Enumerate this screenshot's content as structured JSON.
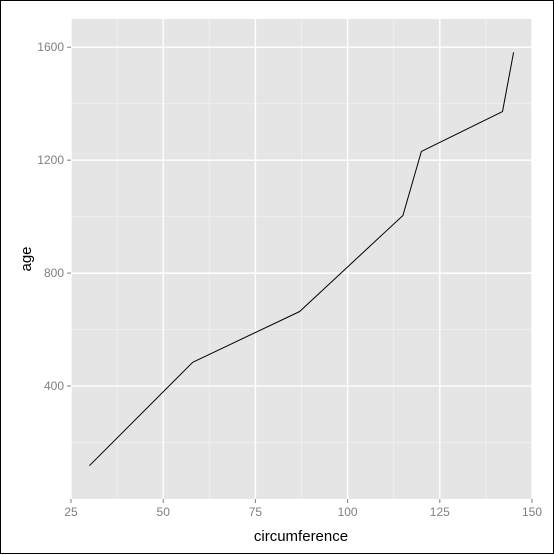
{
  "chart_data": {
    "type": "line",
    "xlabel": "circumference",
    "ylabel": "age",
    "xlim": [
      25,
      150
    ],
    "ylim": [
      0,
      1700
    ],
    "x_ticks": [
      25,
      50,
      75,
      100,
      125,
      150
    ],
    "y_ticks": [
      400,
      800,
      1200,
      1600
    ],
    "x_tick_labels": [
      "25",
      "50",
      "75",
      "100",
      "125",
      "150"
    ],
    "y_tick_labels": [
      "400",
      "800",
      "1200",
      "1600"
    ],
    "grid": true,
    "series": [
      {
        "x": [
          30,
          58,
          87,
          115,
          120,
          142,
          145
        ],
        "y": [
          118,
          484,
          664,
          1004,
          1231,
          1372,
          1582
        ]
      }
    ],
    "colors": {
      "panel_background": "#e5e5e5",
      "grid_major": "#ffffff",
      "grid_minor": "#f2f2f2",
      "line": "#000000"
    }
  }
}
